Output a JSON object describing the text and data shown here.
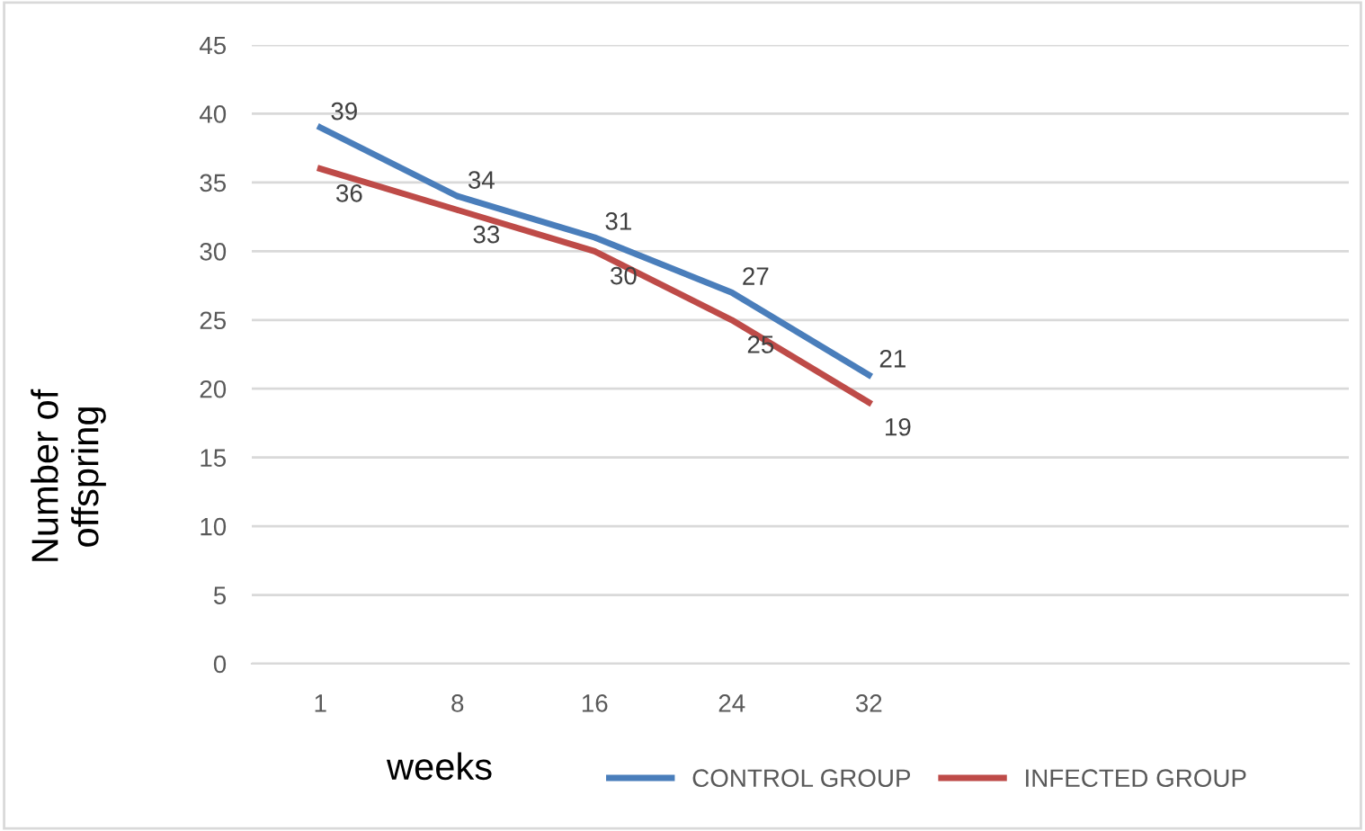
{
  "chart_data": {
    "type": "line",
    "xlabel": "weeks",
    "ylabel": "Number of\noffspring",
    "categories": [
      "1",
      "8",
      "16",
      "24",
      "32",
      null,
      null,
      null
    ],
    "series": [
      {
        "name": "CONTROL GROUP",
        "color": "#4a7ebb",
        "values": [
          39,
          34,
          31,
          27,
          21,
          null,
          null,
          null
        ]
      },
      {
        "name": "INFECTED GROUP",
        "color": "#be4b48",
        "values": [
          36,
          33,
          30,
          25,
          19,
          null,
          null,
          null
        ]
      }
    ],
    "ylim": [
      0,
      45
    ],
    "yticks": [
      0,
      5,
      10,
      15,
      20,
      25,
      30,
      35,
      40,
      45
    ],
    "grid": "y",
    "legend": "bottom",
    "data_labels": true,
    "marker": "none",
    "line_style": "solid"
  }
}
